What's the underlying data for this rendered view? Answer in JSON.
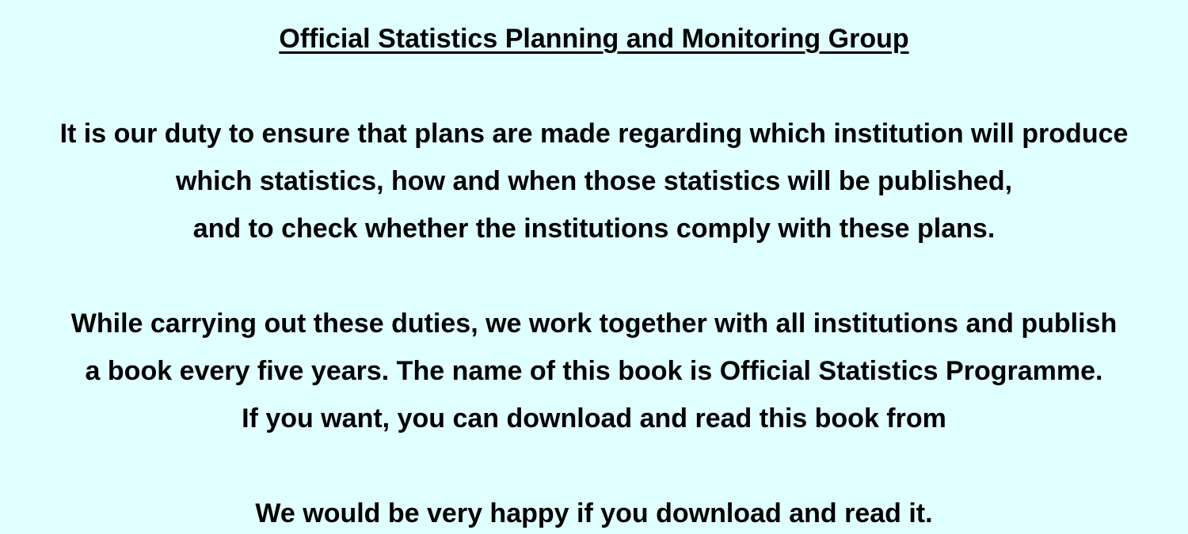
{
  "heading": {
    "title": "Official Statistics Planning and Monitoring Group"
  },
  "paragraph1": {
    "lines": [
      "It is our duty to ensure that plans are made regarding which institution will produce",
      "which statistics, how and when those statistics will be published,",
      "and to check whether the institutions comply with these plans."
    ]
  },
  "paragraph2": {
    "lines": [
      "While carrying out these duties, we work together with all institutions and publish",
      "a book every five years. The name of this book is Official Statistics Programme.",
      "If you want, you can download and read this book from"
    ]
  },
  "closing": {
    "text": "We would be very happy if you download and read it."
  },
  "colors": {
    "background": "#e0ffff",
    "text": "#000000"
  }
}
